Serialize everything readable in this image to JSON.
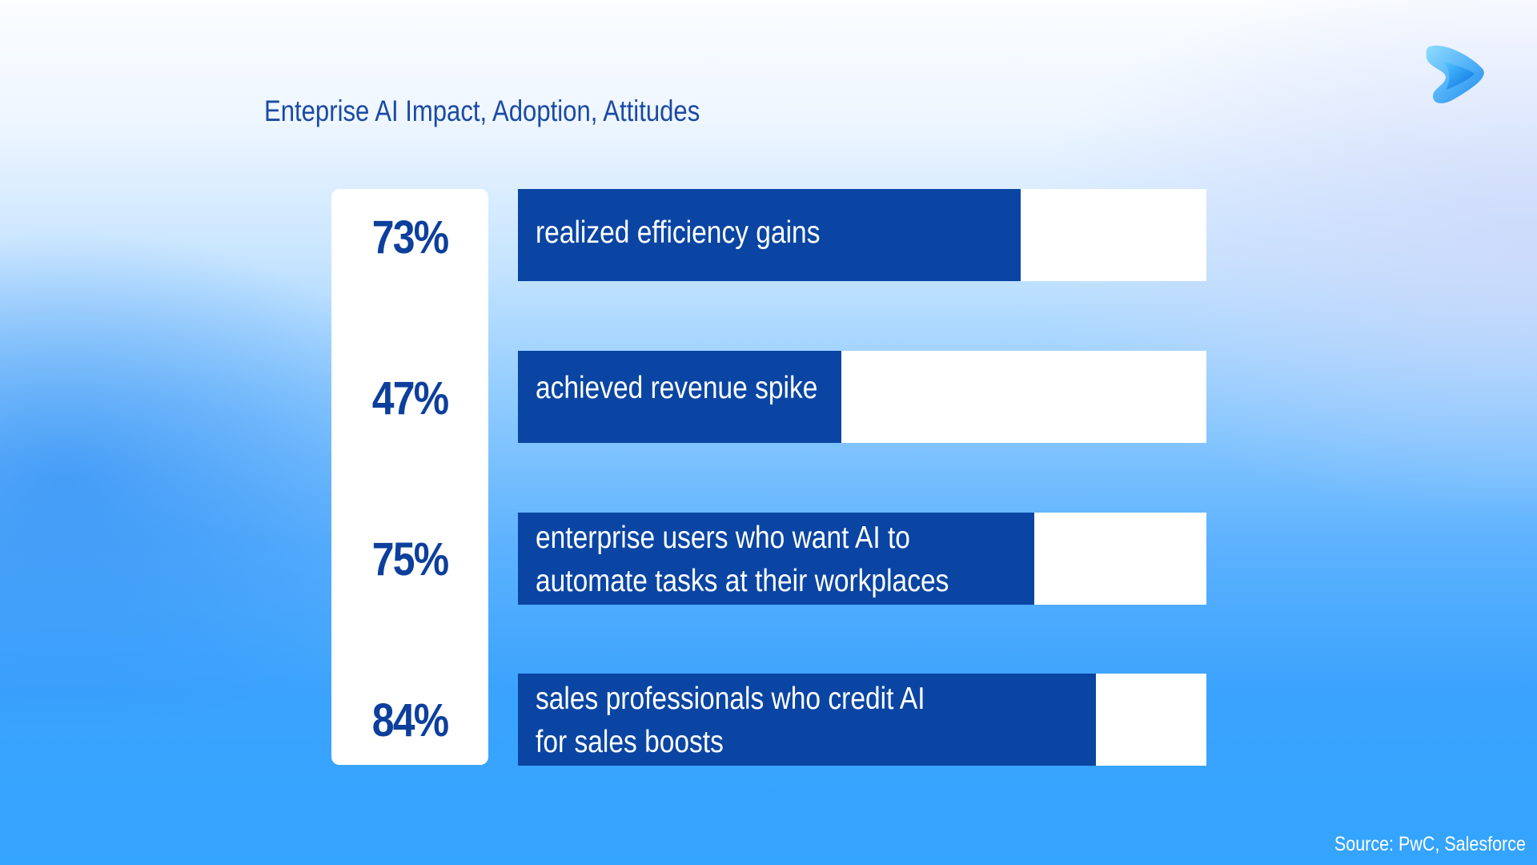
{
  "chart_data": {
    "type": "bar",
    "orientation": "horizontal",
    "title": "Enteprise AI Impact, Adoption, Attitudes",
    "categories": [
      "realized efficiency gains",
      "achieved revenue spike",
      "enterprise users who want AI to\nautomate tasks at their workplaces",
      "sales professionals who credit AI\nfor sales boosts"
    ],
    "values": [
      73,
      47,
      75,
      84
    ],
    "value_labels": [
      "73%",
      "47%",
      "75%",
      "84%"
    ],
    "xlim": [
      0,
      100
    ],
    "grid": false,
    "legend": "none"
  },
  "source": "Source: PwC, Salesforce",
  "colors": {
    "bar_fill": "#0a45a3",
    "bar_track": "#ffffff",
    "value_text": "#0d3f9c",
    "title_text": "#1a4aa3"
  },
  "icons": {
    "logo": "brand-play-logo-icon"
  }
}
